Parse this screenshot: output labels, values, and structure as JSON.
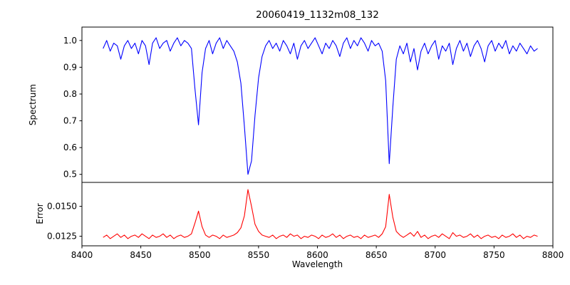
{
  "chart_data": {
    "type": "line",
    "title": "20060419_1132m08_132",
    "xlabel": "Wavelength",
    "xlim": [
      8400,
      8800
    ],
    "xticks": [
      8400,
      8450,
      8500,
      8550,
      8600,
      8650,
      8700,
      8750,
      8800
    ],
    "xtick_labels": [
      "8400",
      "8450",
      "8500",
      "8550",
      "8600",
      "8650",
      "8700",
      "8750",
      "8800"
    ],
    "x_start": 8418,
    "x_step": 3,
    "grid": false,
    "legend": "none",
    "panels": [
      {
        "name": "spectrum",
        "ylabel": "Spectrum",
        "color": "#0000ff",
        "ylim": [
          0.47,
          1.05
        ],
        "yticks": [
          0.5,
          0.6,
          0.7,
          0.8,
          0.9,
          1.0
        ],
        "ytick_labels": [
          "0.5",
          "0.6",
          "0.7",
          "0.8",
          "0.9",
          "1.0"
        ],
        "features": "continuum near 1.0 with noise; absorption lines at 8498 (depth 0.69), 8542 (depth 0.50), 8662 (depth 0.54)",
        "y": [
          0.97,
          1.0,
          0.96,
          0.99,
          0.98,
          0.93,
          0.98,
          1.0,
          0.97,
          0.99,
          0.95,
          1.0,
          0.98,
          0.91,
          0.99,
          1.01,
          0.97,
          0.99,
          1.0,
          0.96,
          0.99,
          1.01,
          0.98,
          1.0,
          0.99,
          0.97,
          0.82,
          0.685,
          0.88,
          0.97,
          1.0,
          0.95,
          0.99,
          1.01,
          0.97,
          1.0,
          0.98,
          0.96,
          0.92,
          0.84,
          0.68,
          0.5,
          0.55,
          0.72,
          0.86,
          0.94,
          0.98,
          1.0,
          0.97,
          0.99,
          0.96,
          1.0,
          0.98,
          0.95,
          0.99,
          0.93,
          0.98,
          1.0,
          0.97,
          0.99,
          1.01,
          0.98,
          0.95,
          0.99,
          0.97,
          1.0,
          0.98,
          0.94,
          0.99,
          1.01,
          0.97,
          1.0,
          0.98,
          1.01,
          0.99,
          0.96,
          1.0,
          0.98,
          0.99,
          0.96,
          0.85,
          0.54,
          0.75,
          0.93,
          0.98,
          0.95,
          0.99,
          0.92,
          0.97,
          0.89,
          0.96,
          0.99,
          0.95,
          0.98,
          1.0,
          0.93,
          0.98,
          0.96,
          0.99,
          0.91,
          0.97,
          1.0,
          0.96,
          0.99,
          0.94,
          0.98,
          1.0,
          0.97,
          0.92,
          0.98,
          1.0,
          0.96,
          0.99,
          0.97,
          1.0,
          0.95,
          0.98,
          0.96,
          0.99,
          0.97,
          0.95,
          0.98,
          0.96,
          0.97
        ]
      },
      {
        "name": "error",
        "ylabel": "Error",
        "color": "#ff0000",
        "ylim": [
          0.0117,
          0.017
        ],
        "yticks": [
          0.0125,
          0.015
        ],
        "ytick_labels": [
          "0.0125",
          "0.0150"
        ],
        "features": "baseline near 0.0125 with peaks at 8498 (0.0146), 8542 (0.0164), 8662 (0.0160)",
        "y": [
          0.0124,
          0.0126,
          0.0123,
          0.0125,
          0.0127,
          0.0124,
          0.0126,
          0.0123,
          0.0125,
          0.0126,
          0.0124,
          0.0127,
          0.0125,
          0.0123,
          0.0126,
          0.0124,
          0.0125,
          0.0127,
          0.0124,
          0.0126,
          0.0123,
          0.0125,
          0.0126,
          0.0124,
          0.0125,
          0.0127,
          0.0136,
          0.0146,
          0.0133,
          0.0126,
          0.0124,
          0.0126,
          0.0125,
          0.0123,
          0.0126,
          0.0124,
          0.0125,
          0.0126,
          0.0128,
          0.0132,
          0.0142,
          0.0164,
          0.015,
          0.0135,
          0.0129,
          0.0126,
          0.0125,
          0.0124,
          0.0126,
          0.0123,
          0.0125,
          0.0126,
          0.0124,
          0.0127,
          0.0125,
          0.0126,
          0.0123,
          0.0125,
          0.0124,
          0.0126,
          0.0125,
          0.0123,
          0.0126,
          0.0124,
          0.0125,
          0.0127,
          0.0124,
          0.0126,
          0.0123,
          0.0125,
          0.0126,
          0.0124,
          0.0125,
          0.0123,
          0.0126,
          0.0124,
          0.0125,
          0.0126,
          0.0124,
          0.0127,
          0.0133,
          0.016,
          0.0141,
          0.0129,
          0.0126,
          0.0124,
          0.0126,
          0.0128,
          0.0125,
          0.0129,
          0.0124,
          0.0126,
          0.0123,
          0.0125,
          0.0126,
          0.0124,
          0.0127,
          0.0125,
          0.0123,
          0.0128,
          0.0125,
          0.0126,
          0.0124,
          0.0125,
          0.0127,
          0.0124,
          0.0126,
          0.0123,
          0.0125,
          0.0126,
          0.0124,
          0.0125,
          0.0123,
          0.0126,
          0.0124,
          0.0125,
          0.0127,
          0.0124,
          0.0126,
          0.0123,
          0.0125,
          0.0124,
          0.0126,
          0.0125
        ]
      }
    ]
  }
}
